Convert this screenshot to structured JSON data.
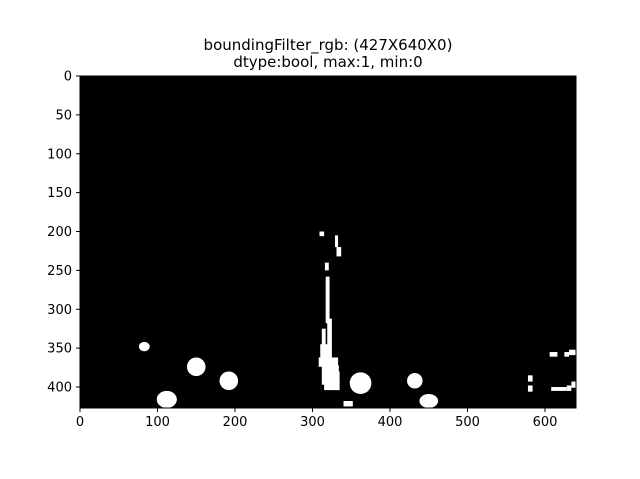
{
  "figure": {
    "background": "#ffffff"
  },
  "chart_data": {
    "type": "heatmap",
    "title_line1": "boundingFilter_rgb: (427X640X0)",
    "title_line2": "dtype:bool, max:1, min:0",
    "xlabel": "",
    "ylabel": "",
    "xlim": [
      0,
      640
    ],
    "ylim": [
      427,
      0
    ],
    "colormap": {
      "0": "#000000",
      "1": "#ffffff"
    },
    "grid": false,
    "x_ticks": [
      0,
      100,
      200,
      300,
      400,
      500,
      600
    ],
    "y_ticks": [
      0,
      50,
      100,
      150,
      200,
      250,
      300,
      350,
      400
    ],
    "blobs": [
      {
        "shape": "ellipse",
        "cx": 83,
        "cy": 348,
        "rx": 7,
        "ry": 6
      },
      {
        "shape": "ellipse",
        "cx": 112,
        "cy": 416,
        "rx": 13,
        "ry": 11
      },
      {
        "shape": "ellipse",
        "cx": 150,
        "cy": 374,
        "rx": 12,
        "ry": 12
      },
      {
        "shape": "ellipse",
        "cx": 192,
        "cy": 392,
        "rx": 12,
        "ry": 12
      },
      {
        "shape": "ellipse",
        "cx": 362,
        "cy": 395,
        "rx": 14,
        "ry": 14
      },
      {
        "shape": "ellipse",
        "cx": 432,
        "cy": 392,
        "rx": 10,
        "ry": 10
      },
      {
        "shape": "ellipse",
        "cx": 450,
        "cy": 418,
        "rx": 12,
        "ry": 9
      },
      {
        "shape": "rect",
        "x": 309,
        "y": 200,
        "w": 6,
        "h": 6
      },
      {
        "shape": "rect",
        "x": 329,
        "y": 205,
        "w": 4,
        "h": 15
      },
      {
        "shape": "rect",
        "x": 331,
        "y": 220,
        "w": 6,
        "h": 12
      },
      {
        "shape": "rect",
        "x": 316,
        "y": 240,
        "w": 5,
        "h": 10
      },
      {
        "shape": "rect",
        "x": 317,
        "y": 258,
        "w": 5,
        "h": 60
      },
      {
        "shape": "rect",
        "x": 319,
        "y": 312,
        "w": 6,
        "h": 50
      },
      {
        "shape": "rect",
        "x": 312,
        "y": 325,
        "w": 5,
        "h": 30
      },
      {
        "shape": "rect",
        "x": 310,
        "y": 345,
        "w": 10,
        "h": 25
      },
      {
        "shape": "rect",
        "x": 308,
        "y": 362,
        "w": 25,
        "h": 12
      },
      {
        "shape": "rect",
        "x": 312,
        "y": 372,
        "w": 22,
        "h": 25
      },
      {
        "shape": "rect",
        "x": 315,
        "y": 392,
        "w": 20,
        "h": 12
      },
      {
        "shape": "rect",
        "x": 330,
        "y": 380,
        "w": 5,
        "h": 15
      },
      {
        "shape": "rect",
        "x": 340,
        "y": 418,
        "w": 12,
        "h": 7
      },
      {
        "shape": "rect",
        "x": 578,
        "y": 385,
        "w": 6,
        "h": 8
      },
      {
        "shape": "rect",
        "x": 578,
        "y": 398,
        "w": 6,
        "h": 8
      },
      {
        "shape": "rect",
        "x": 606,
        "y": 355,
        "w": 10,
        "h": 6
      },
      {
        "shape": "rect",
        "x": 608,
        "y": 400,
        "w": 20,
        "h": 5
      },
      {
        "shape": "rect",
        "x": 625,
        "y": 355,
        "w": 6,
        "h": 6
      },
      {
        "shape": "rect",
        "x": 631,
        "y": 352,
        "w": 9,
        "h": 7
      },
      {
        "shape": "rect",
        "x": 628,
        "y": 398,
        "w": 6,
        "h": 7
      },
      {
        "shape": "rect",
        "x": 634,
        "y": 393,
        "w": 6,
        "h": 8
      }
    ]
  }
}
